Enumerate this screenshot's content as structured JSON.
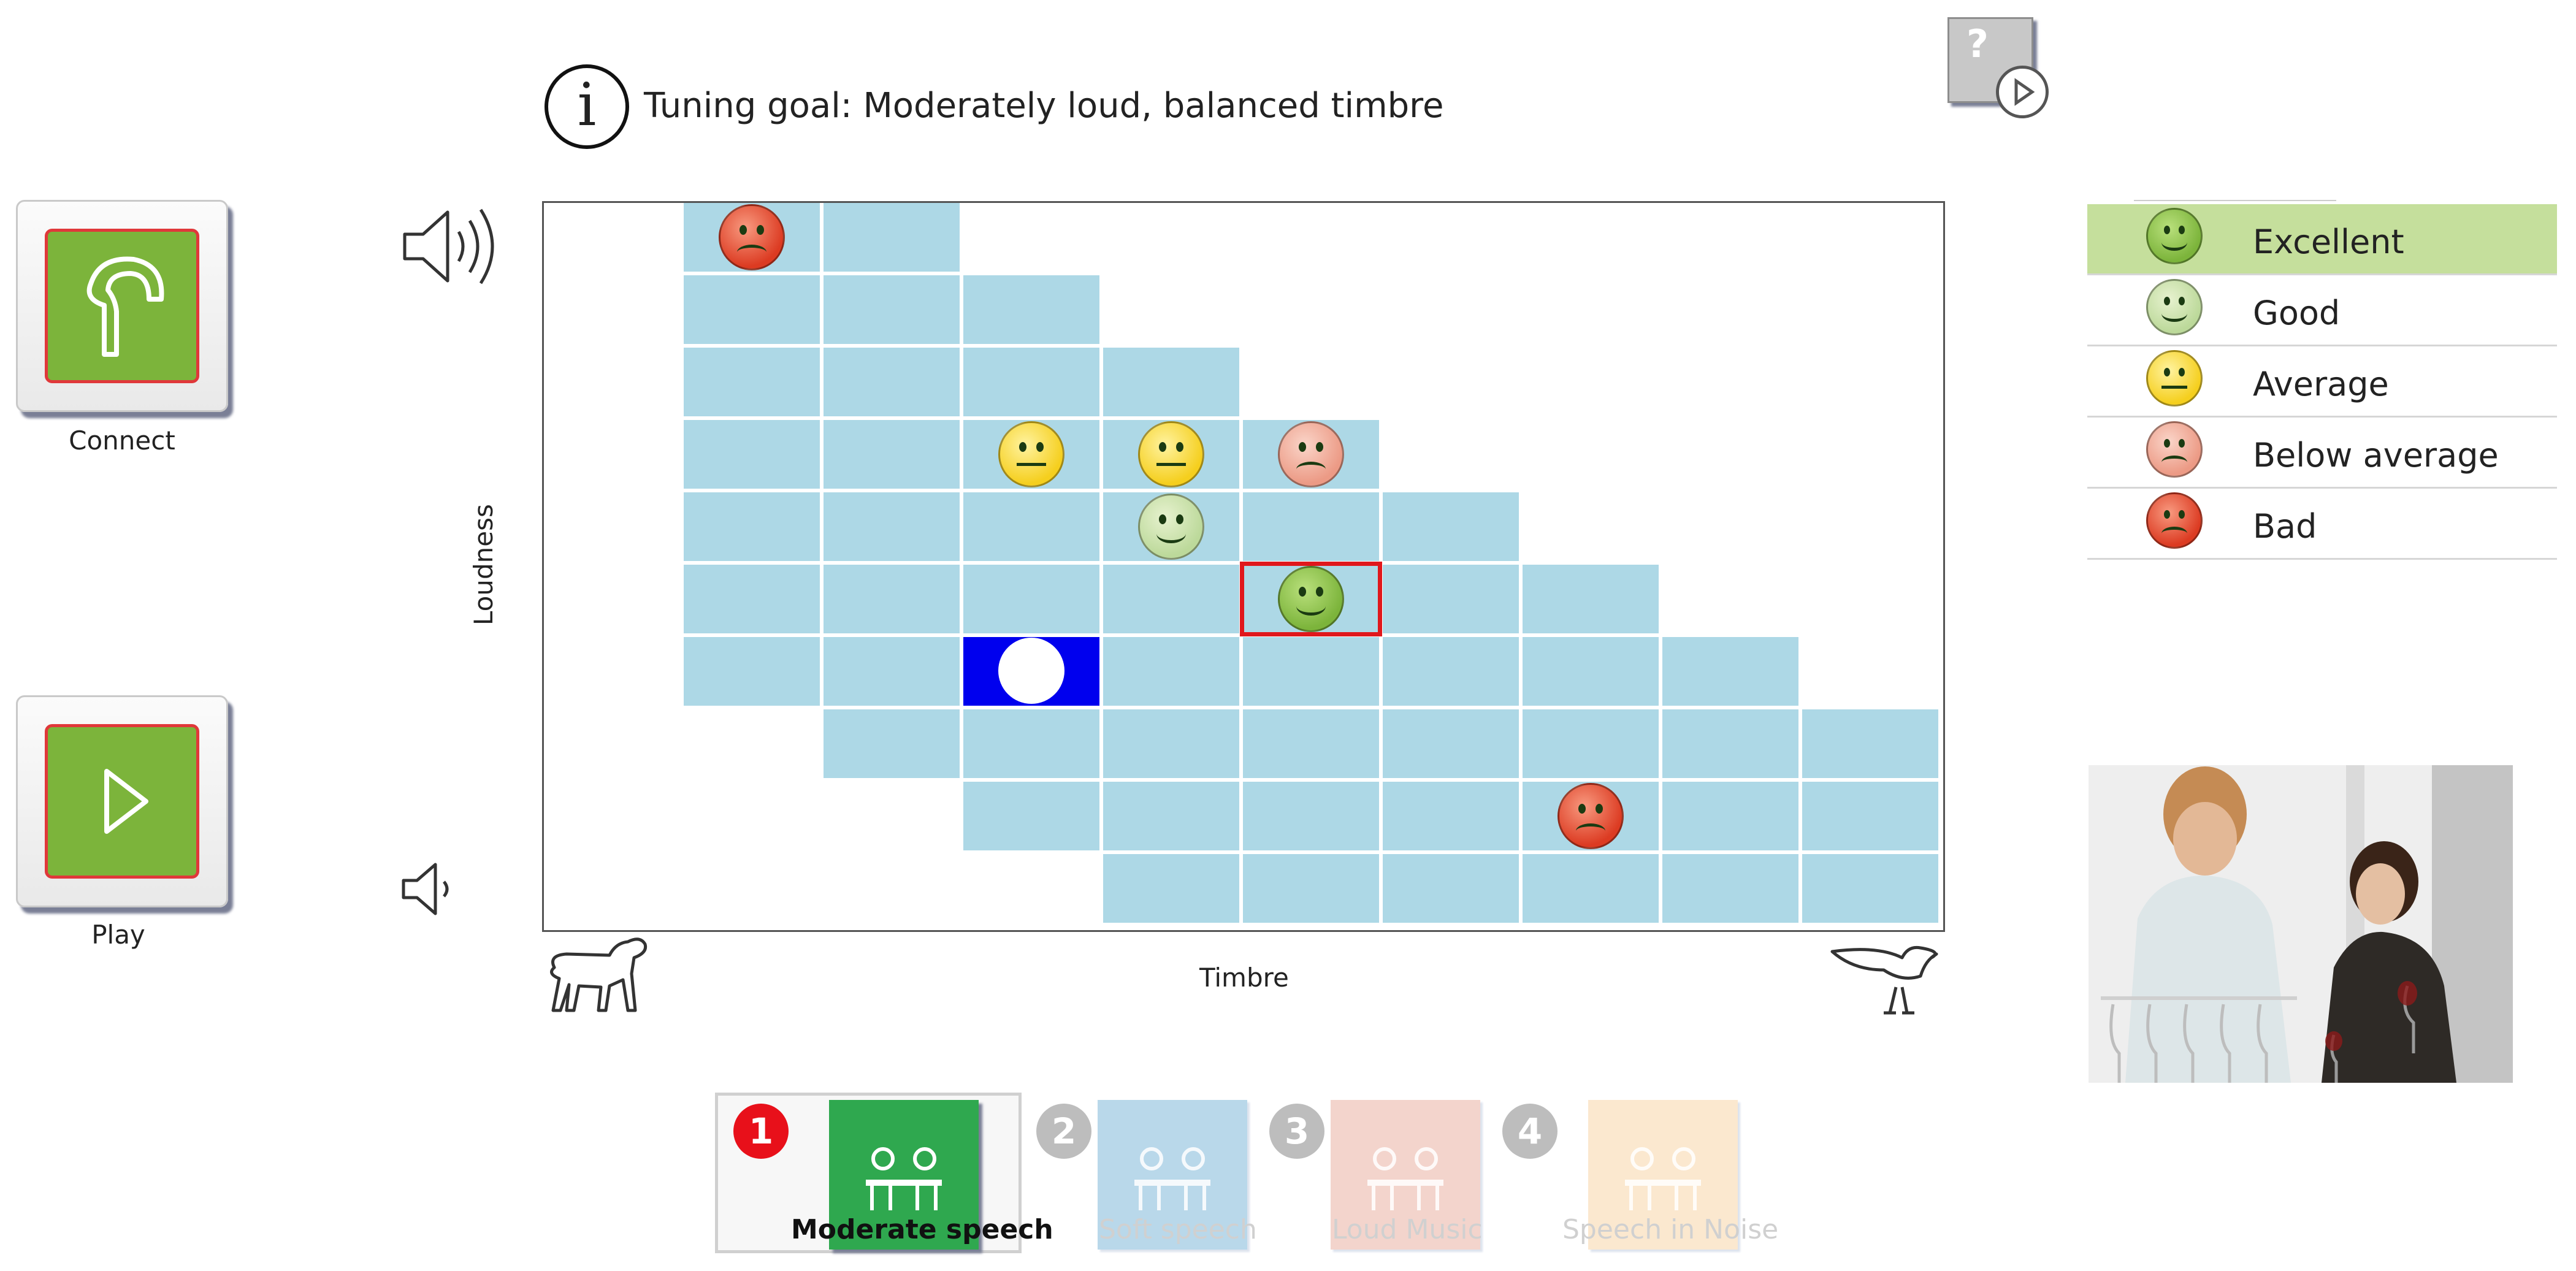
{
  "header": {
    "goal_text": "Tuning goal: Moderately loud, balanced timbre",
    "help_glyph": "?"
  },
  "left_panel": {
    "connect_label": "Connect",
    "play_label": "Play"
  },
  "grid": {
    "y_axis_label": "Loudness",
    "x_axis_label": "Timbre",
    "rows": 10,
    "cols": 10,
    "row_extents": [
      [
        1,
        2
      ],
      [
        1,
        3
      ],
      [
        1,
        4
      ],
      [
        1,
        5
      ],
      [
        1,
        6
      ],
      [
        1,
        7
      ],
      [
        1,
        8
      ],
      [
        2,
        9
      ],
      [
        3,
        9
      ],
      [
        4,
        9
      ]
    ],
    "selected_cell": {
      "row": 6,
      "col": 3
    },
    "active_cell": {
      "row": 5,
      "col": 5
    },
    "ratings": [
      {
        "row": 0,
        "col": 1,
        "rating": "bad"
      },
      {
        "row": 3,
        "col": 3,
        "rating": "average"
      },
      {
        "row": 3,
        "col": 4,
        "rating": "average"
      },
      {
        "row": 3,
        "col": 5,
        "rating": "below"
      },
      {
        "row": 4,
        "col": 4,
        "rating": "good"
      },
      {
        "row": 5,
        "col": 5,
        "rating": "excellent"
      },
      {
        "row": 8,
        "col": 7,
        "rating": "bad"
      }
    ]
  },
  "legend": [
    {
      "key": "excellent",
      "label": "Excellent",
      "highlight": true
    },
    {
      "key": "good",
      "label": "Good",
      "highlight": false
    },
    {
      "key": "average",
      "label": "Average",
      "highlight": false
    },
    {
      "key": "below",
      "label": "Below average",
      "highlight": false
    },
    {
      "key": "bad",
      "label": "Bad",
      "highlight": false
    }
  ],
  "programs": [
    {
      "number": "1",
      "label": "Moderate speech",
      "active": true,
      "tile_color": "#2fa84f",
      "num_color": "#e8101a"
    },
    {
      "number": "2",
      "label": "Soft speech",
      "active": false,
      "tile_color": "#b9d8ea",
      "num_color": "#bdbdbd"
    },
    {
      "number": "3",
      "label": "Loud Music",
      "active": false,
      "tile_color": "#f3d4cc",
      "num_color": "#bdbdbd"
    },
    {
      "number": "4",
      "label": "Speech in Noise",
      "active": false,
      "tile_color": "#fbe8cf",
      "num_color": "#bdbdbd"
    }
  ],
  "icons": {
    "connect": "hearing-aid-icon",
    "play": "play-icon",
    "info": "info-icon",
    "help": "help-video-icon",
    "loud": "speaker-loud-icon",
    "soft": "speaker-soft-icon",
    "dog": "dog-icon",
    "bird": "bird-icon"
  }
}
